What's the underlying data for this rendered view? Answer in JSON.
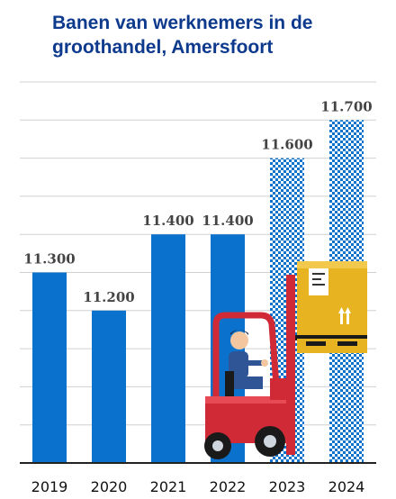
{
  "title": "Banen van werknemers in de groothandel, Amersfoort",
  "colors": {
    "bar": "#0a72cc",
    "forecast": "#0a72cc",
    "grid": "#d0d0d0",
    "axis": "#222222",
    "title": "#0e3a8e"
  },
  "illustration": "forklift-icon",
  "chart_data": {
    "type": "bar",
    "title": "Banen van werknemers in de groothandel, Amersfoort",
    "xlabel": "",
    "ylabel": "",
    "categories": [
      "2019",
      "2020",
      "2021",
      "2022",
      "2023",
      "2024"
    ],
    "values": [
      11300,
      11200,
      11400,
      11400,
      11600,
      11700
    ],
    "value_labels": [
      "11.300",
      "11.200",
      "11.400",
      "11.400",
      "11.600",
      "11.700"
    ],
    "bar_styles": [
      "solid",
      "solid",
      "solid",
      "solid",
      "checkered",
      "checkered"
    ],
    "ylim": [
      10800,
      11800
    ],
    "grid": true,
    "legend": "none"
  }
}
